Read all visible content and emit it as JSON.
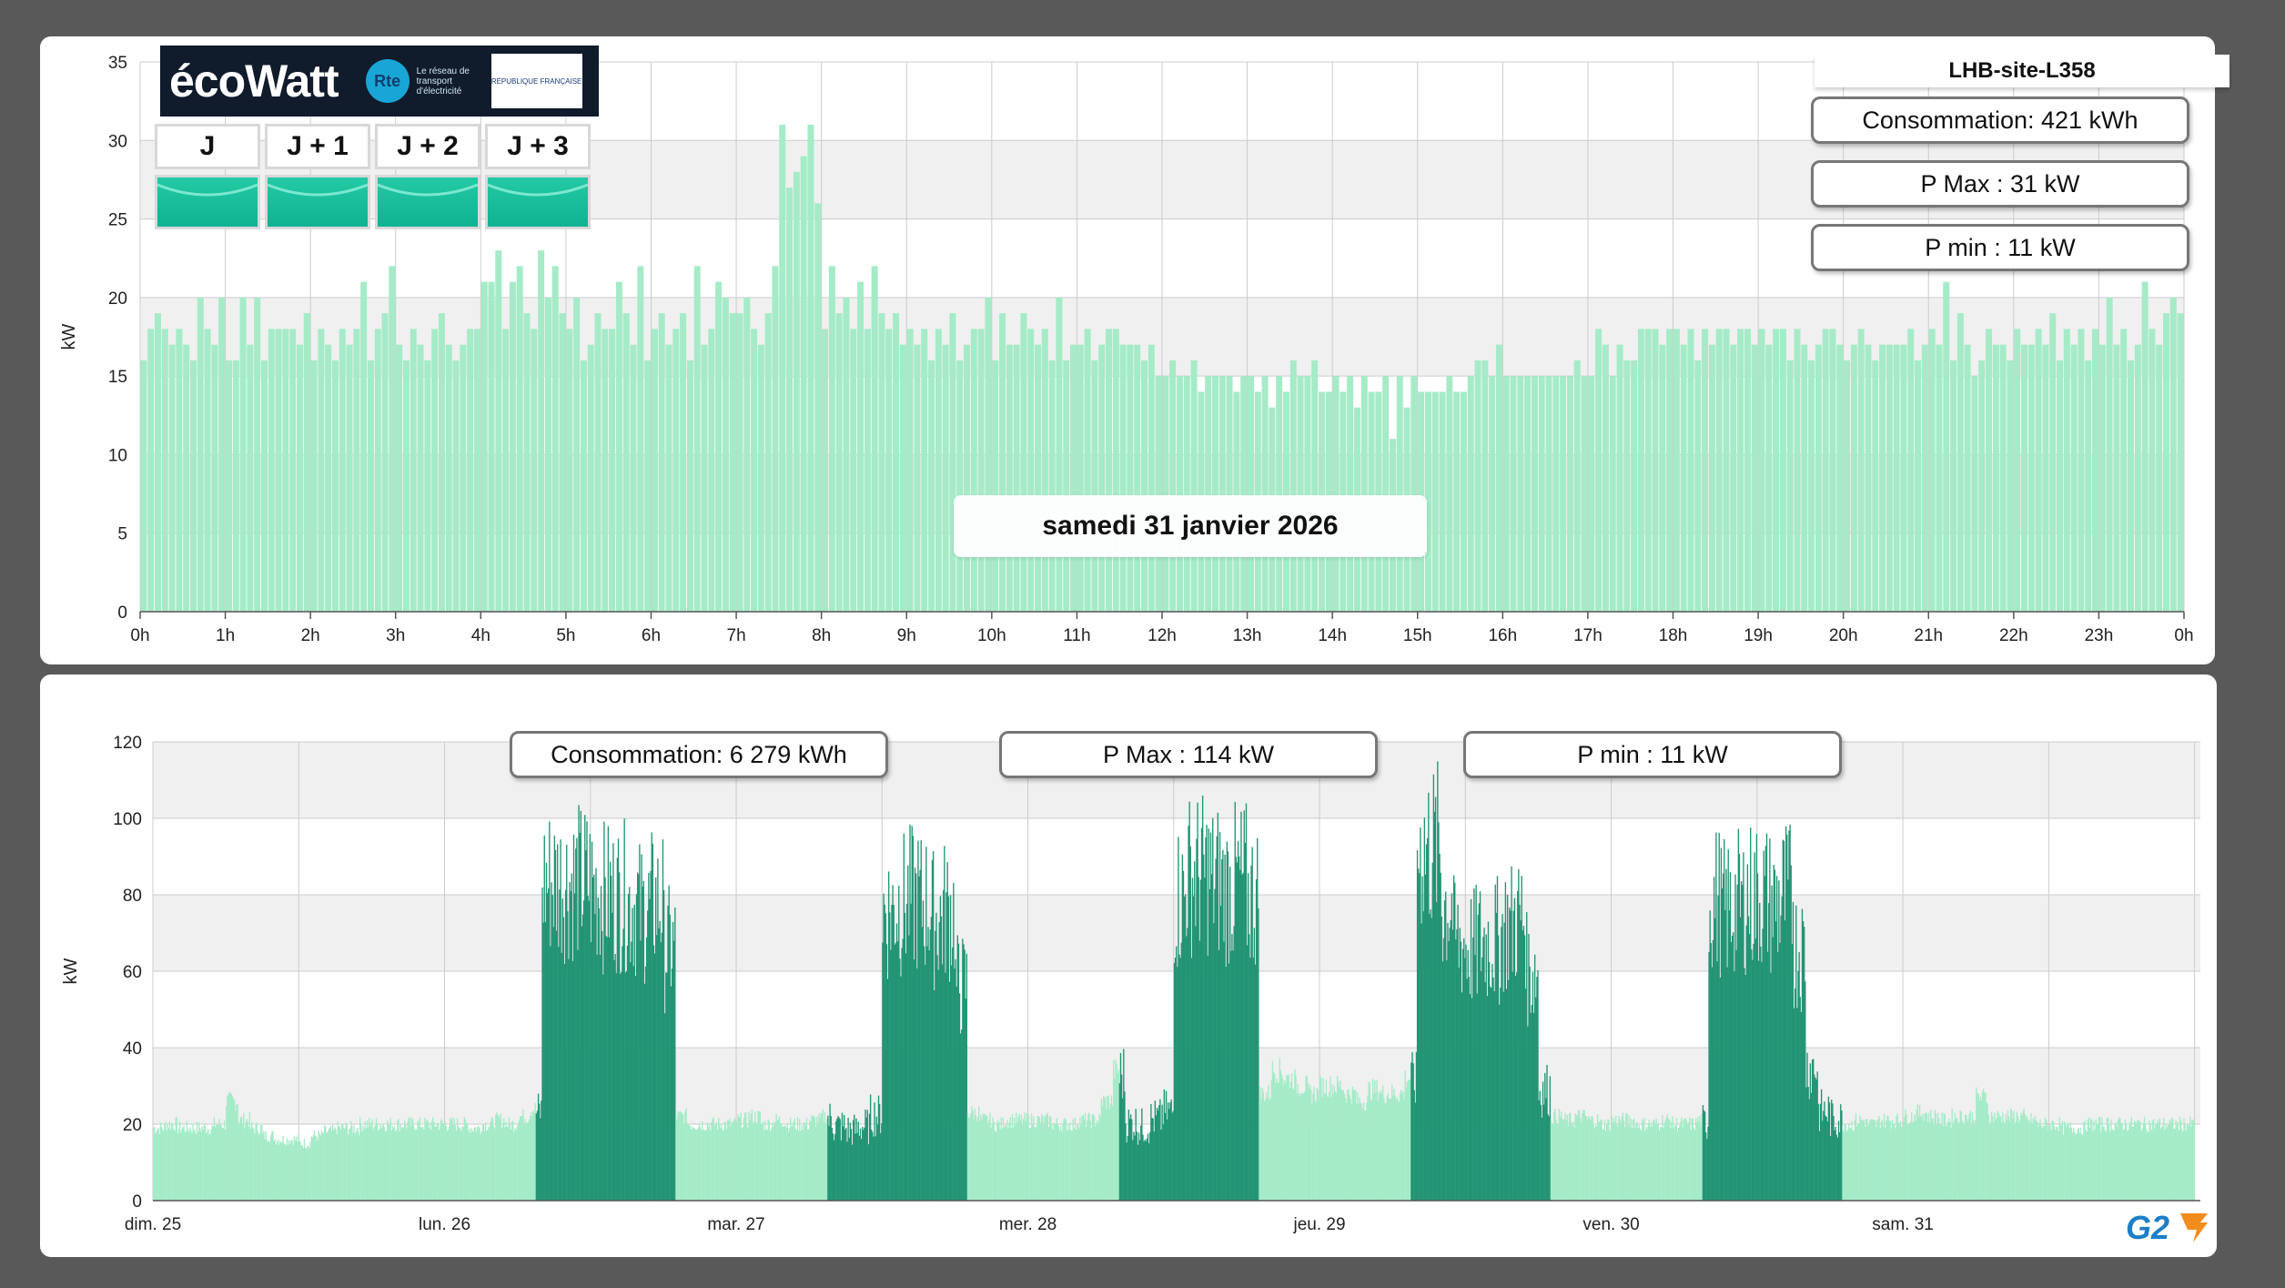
{
  "top_panel": {
    "site_name": "LHB-site-L358",
    "stats": {
      "consumption": "Consommation: 421 kWh",
      "pmax": "P Max :  31 kW",
      "pmin": "P min : 11 kW"
    },
    "date_label": "samedi 31 janvier 2026",
    "ecowatt": {
      "logo_text": "écoWatt",
      "rte_text": "Le réseau de transport d'électricité",
      "rte_badge": "Rte",
      "republic_text": "RÉPUBLIQUE FRANÇAISE",
      "days": [
        "J",
        "J + 1",
        "J + 2",
        "J + 3"
      ],
      "signal_color": "#1ab99a"
    }
  },
  "bottom_panel": {
    "stats": {
      "consumption": "Consommation: 6 279 kWh",
      "pmax": "P Max :  114 kW",
      "pmin": "P min : 11 kW"
    },
    "brand": "G2"
  },
  "colors": {
    "bar_light": "#a5ebc8",
    "bar_dark": "#239474",
    "band": "#f0f0f0",
    "grid": "#cccccc"
  },
  "chart_data": [
    {
      "type": "bar",
      "ylabel": "kW",
      "ylim": [
        0,
        35
      ],
      "yticks": [
        0,
        5,
        10,
        15,
        20,
        25,
        30,
        35
      ],
      "x_ticks": [
        "0h",
        "1h",
        "2h",
        "3h",
        "4h",
        "5h",
        "6h",
        "7h",
        "8h",
        "9h",
        "10h",
        "11h",
        "12h",
        "13h",
        "14h",
        "15h",
        "16h",
        "17h",
        "18h",
        "19h",
        "20h",
        "21h",
        "22h",
        "23h",
        "0h"
      ],
      "x_unit": "hour",
      "hourly_values_5min": [
        [
          16,
          18,
          19,
          18,
          17,
          18,
          17,
          16,
          20,
          18,
          17,
          20
        ],
        [
          16,
          16,
          20,
          17,
          20,
          16,
          18,
          18,
          18,
          18,
          17,
          19
        ],
        [
          16,
          18,
          17,
          16,
          18,
          17,
          18,
          21,
          16,
          18,
          19,
          22
        ],
        [
          17,
          16,
          18,
          17,
          16,
          18,
          19,
          17,
          16,
          17,
          18,
          18
        ],
        [
          21,
          21,
          23,
          18,
          21,
          22,
          19,
          18,
          23,
          20,
          22,
          19
        ],
        [
          18,
          20,
          16,
          17,
          19,
          18,
          18,
          21,
          19,
          17,
          22,
          16
        ],
        [
          18,
          19,
          17,
          18,
          19,
          16,
          22,
          17,
          18,
          21,
          20,
          19
        ],
        [
          19,
          20,
          18,
          17,
          19,
          22,
          31,
          27,
          28,
          29,
          31,
          26
        ],
        [
          18,
          22,
          19,
          20,
          18,
          21,
          18,
          22,
          19,
          18,
          19,
          17
        ],
        [
          18,
          17,
          18,
          16,
          18,
          17,
          19,
          16,
          17,
          18,
          18,
          20
        ],
        [
          16,
          19,
          17,
          17,
          19,
          18,
          17,
          18,
          16,
          20,
          16,
          17
        ],
        [
          17,
          18,
          16,
          17,
          18,
          18,
          17,
          17,
          17,
          16,
          17,
          15
        ],
        [
          15,
          16,
          15,
          15,
          16,
          14,
          15,
          15,
          15,
          15,
          14,
          15
        ],
        [
          15,
          14,
          15,
          13,
          15,
          14,
          16,
          15,
          15,
          16,
          14,
          14
        ],
        [
          15,
          14,
          15,
          13,
          15,
          14,
          14,
          15,
          11,
          15,
          13,
          15
        ],
        [
          14,
          14,
          14,
          14,
          15,
          14,
          14,
          15,
          16,
          16,
          15,
          17
        ],
        [
          15,
          15,
          15,
          15,
          15,
          15,
          15,
          15,
          15,
          15,
          16,
          15
        ],
        [
          15,
          18,
          17,
          15,
          17,
          16,
          16,
          18,
          18,
          18,
          17,
          18
        ],
        [
          18,
          17,
          18,
          16,
          18,
          17,
          18,
          18,
          17,
          18,
          18,
          17
        ],
        [
          18,
          17,
          18,
          18,
          16,
          18,
          17,
          16,
          17,
          18,
          18,
          17
        ],
        [
          16,
          17,
          18,
          17,
          16,
          17,
          17,
          17,
          17,
          18,
          16,
          17
        ],
        [
          18,
          17,
          21,
          16,
          19,
          17,
          15,
          16,
          18,
          17,
          17,
          16
        ],
        [
          18,
          17,
          17,
          18,
          17,
          19,
          16,
          18,
          17,
          18,
          16,
          18
        ],
        [
          17,
          20,
          17,
          18,
          16,
          17,
          21,
          18,
          17,
          19,
          20,
          19
        ]
      ]
    },
    {
      "type": "bar",
      "ylabel": "kW",
      "ylim": [
        0,
        120
      ],
      "yticks": [
        0,
        20,
        40,
        60,
        80,
        100,
        120
      ],
      "x_ticks": [
        "dim. 25",
        "lun. 26",
        "mar. 27",
        "mer. 28",
        "jeu. 29",
        "ven. 30",
        "sam. 31"
      ],
      "x_unit": "day",
      "profile_hourly_by_day": [
        [
          19,
          20,
          19,
          19,
          19,
          20,
          26,
          21,
          19,
          17,
          16,
          16,
          15,
          17,
          18,
          19,
          19,
          20,
          20,
          20,
          20,
          20,
          20,
          20
        ],
        [
          20,
          20,
          19,
          20,
          21,
          20,
          22,
          24,
          86,
          86,
          86,
          86,
          84,
          82,
          82,
          80,
          78,
          80,
          68,
          22,
          20,
          20,
          20,
          20
        ],
        [
          21,
          22,
          20,
          21,
          20,
          20,
          21,
          22,
          20,
          19,
          20,
          23,
          78,
          80,
          81,
          80,
          76,
          78,
          58,
          23,
          21,
          20,
          21,
          21
        ],
        [
          21,
          21,
          20,
          20,
          21,
          21,
          26,
          34,
          21,
          20,
          22,
          24,
          82,
          88,
          88,
          86,
          84,
          86,
          82,
          28,
          34,
          32,
          30,
          28
        ],
        [
          30,
          30,
          28,
          26,
          29,
          28,
          28,
          32,
          95,
          95,
          80,
          70,
          68,
          70,
          70,
          74,
          76,
          62,
          30,
          22,
          21,
          22,
          21,
          20
        ],
        [
          21,
          21,
          20,
          20,
          21,
          20,
          20,
          21,
          81,
          78,
          80,
          82,
          82,
          80,
          82,
          68,
          36,
          24,
          22,
          20,
          21,
          20,
          21,
          21
        ],
        [
          22,
          23,
          22,
          21,
          22,
          22,
          27,
          22,
          22,
          22,
          21,
          20,
          20,
          19,
          19,
          20,
          20,
          20,
          20,
          20,
          20,
          20,
          20,
          20
        ]
      ],
      "dark_periods": [
        {
          "day": "lun. 26",
          "from_hour": 7.5,
          "to_hour": 19
        },
        {
          "day": "mar. 27",
          "from_hour": 7.5,
          "to_hour": 19
        },
        {
          "day": "mer. 28",
          "from_hour": 7.5,
          "to_hour": 19
        },
        {
          "day": "jeu. 29",
          "from_hour": 7.5,
          "to_hour": 19
        },
        {
          "day": "ven. 30",
          "from_hour": 7.5,
          "to_hour": 19
        }
      ]
    }
  ]
}
